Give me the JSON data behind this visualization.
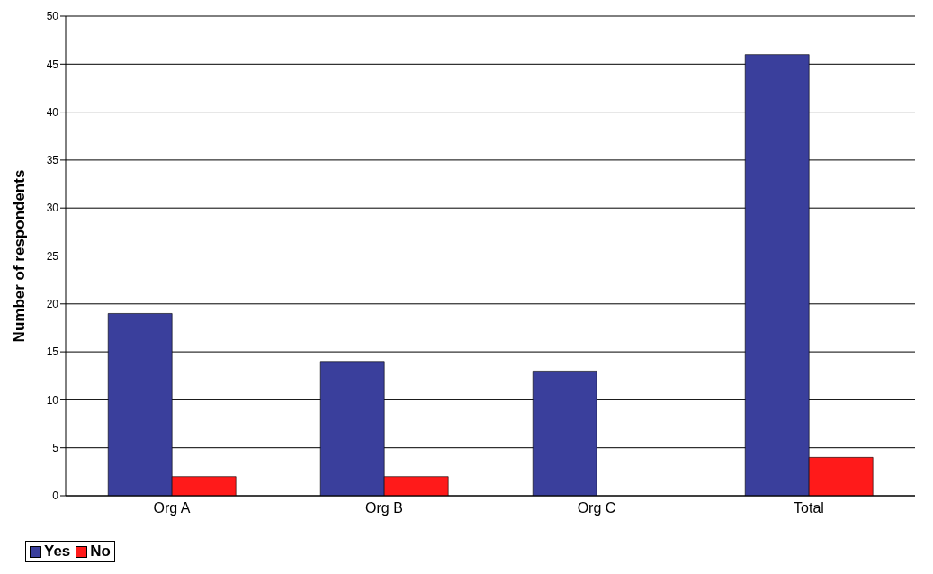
{
  "chart_data": {
    "type": "bar",
    "ylabel": "Number of respondents",
    "categories": [
      "Org A",
      "Org B",
      "Org C",
      "Total"
    ],
    "series": [
      {
        "name": "Yes",
        "color": "#3a3f9c",
        "values": [
          19,
          14,
          13,
          46
        ]
      },
      {
        "name": "No",
        "color": "#ff1a1a",
        "values": [
          2,
          2,
          0,
          4
        ]
      }
    ],
    "ylim": [
      0,
      50
    ],
    "yticks": [
      0,
      5,
      10,
      15,
      20,
      25,
      30,
      35,
      40,
      45,
      50
    ],
    "grid": "y",
    "legend": "bottom"
  }
}
